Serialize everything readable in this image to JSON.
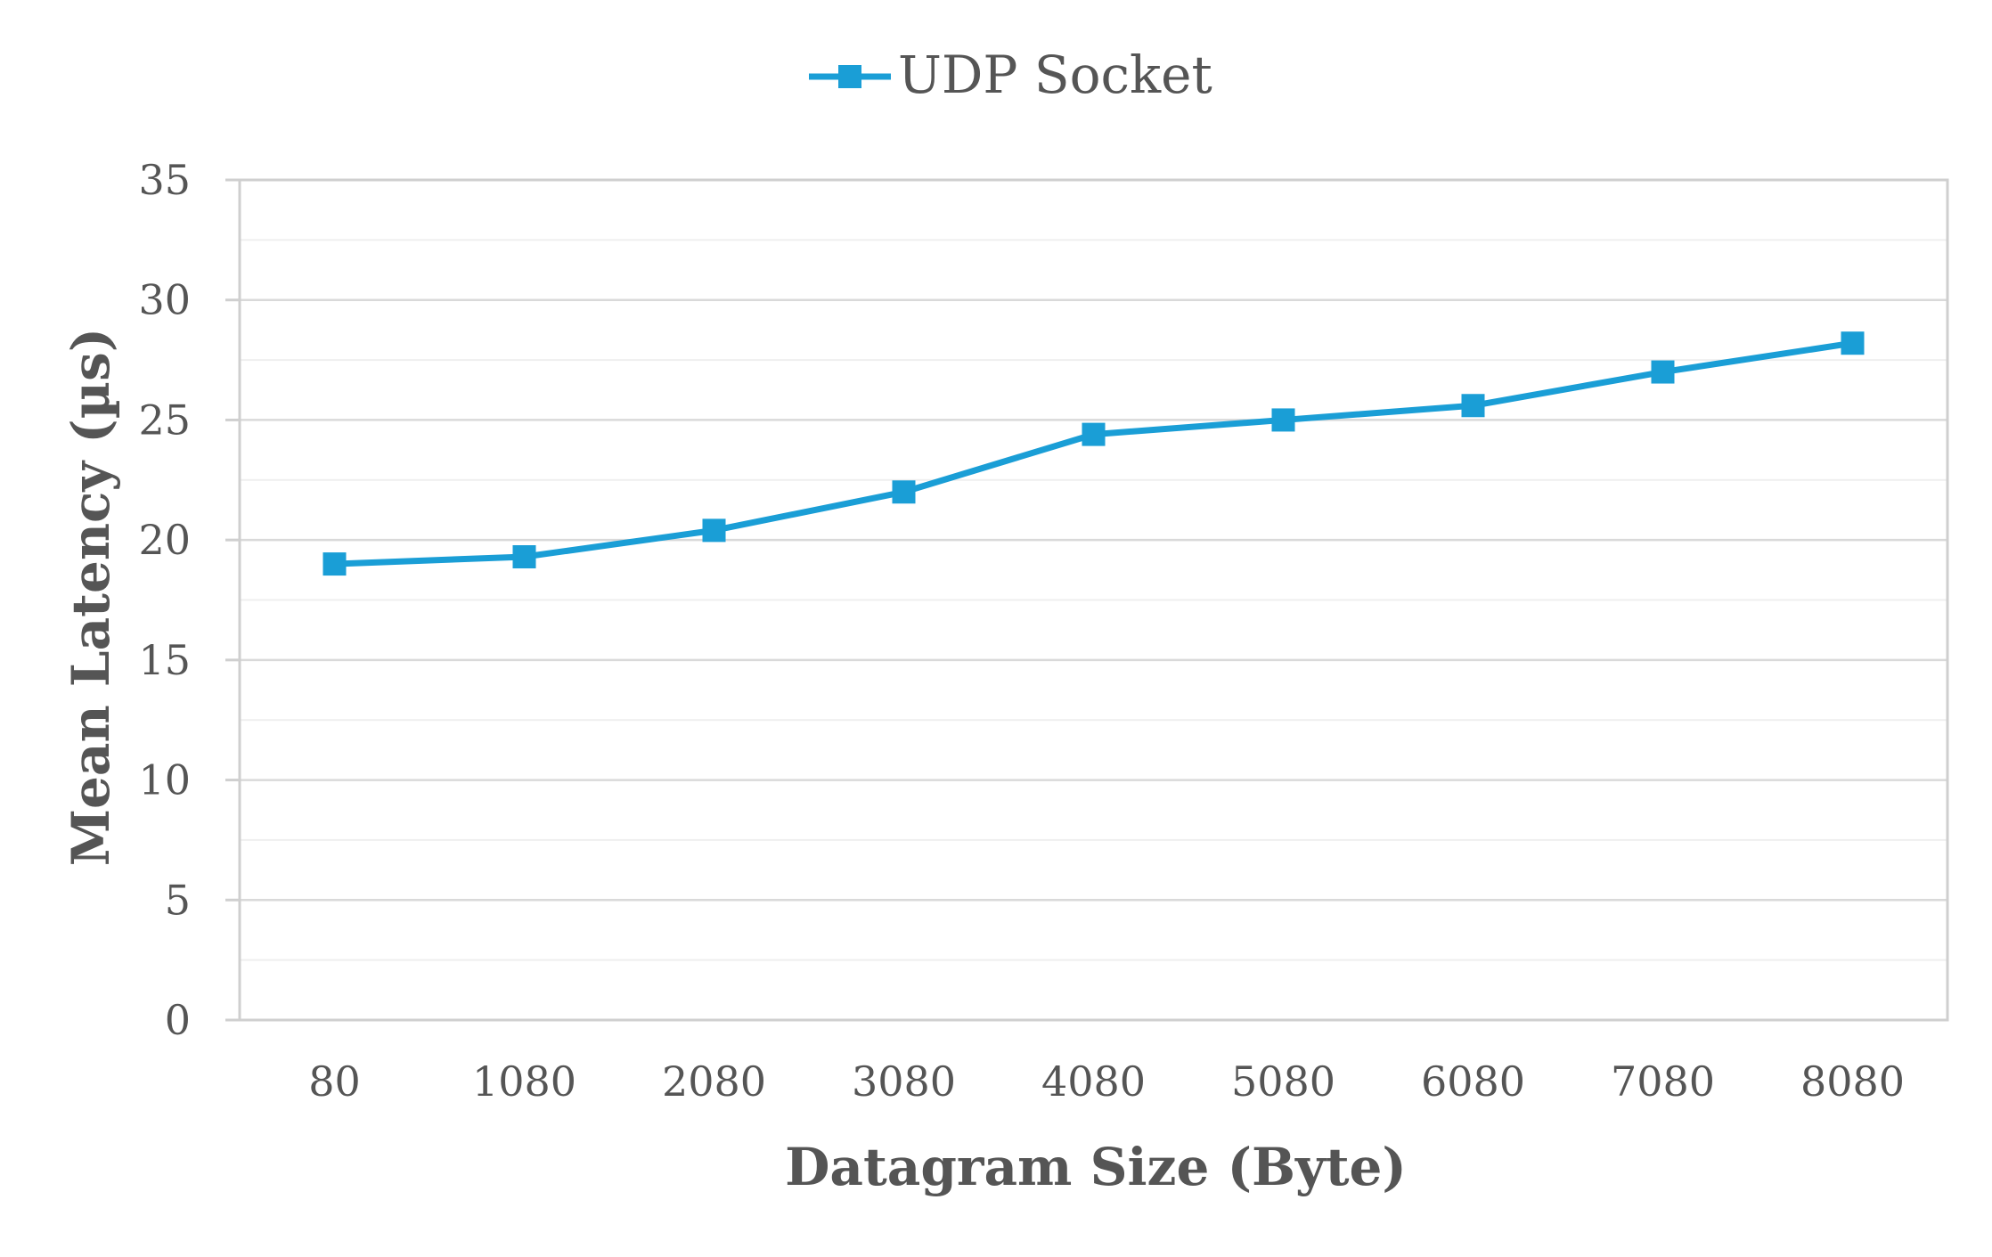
{
  "chart_data": {
    "type": "line",
    "title": "",
    "xlabel": "Datagram Size (Byte)",
    "ylabel": "Mean Latency (µs)",
    "categories": [
      "80",
      "1080",
      "2080",
      "3080",
      "4080",
      "5080",
      "6080",
      "7080",
      "8080"
    ],
    "series": [
      {
        "name": "UDP Socket",
        "color": "#1a9ed6",
        "marker": "square",
        "values": [
          19.0,
          19.3,
          20.4,
          22.0,
          24.4,
          25.0,
          25.6,
          27.0,
          28.2
        ]
      }
    ],
    "ylim": [
      0,
      35
    ],
    "yticks": [
      0,
      5,
      10,
      15,
      20,
      25,
      30,
      35
    ],
    "grid": true,
    "minor_grid": true,
    "legend_position": "top-center"
  }
}
